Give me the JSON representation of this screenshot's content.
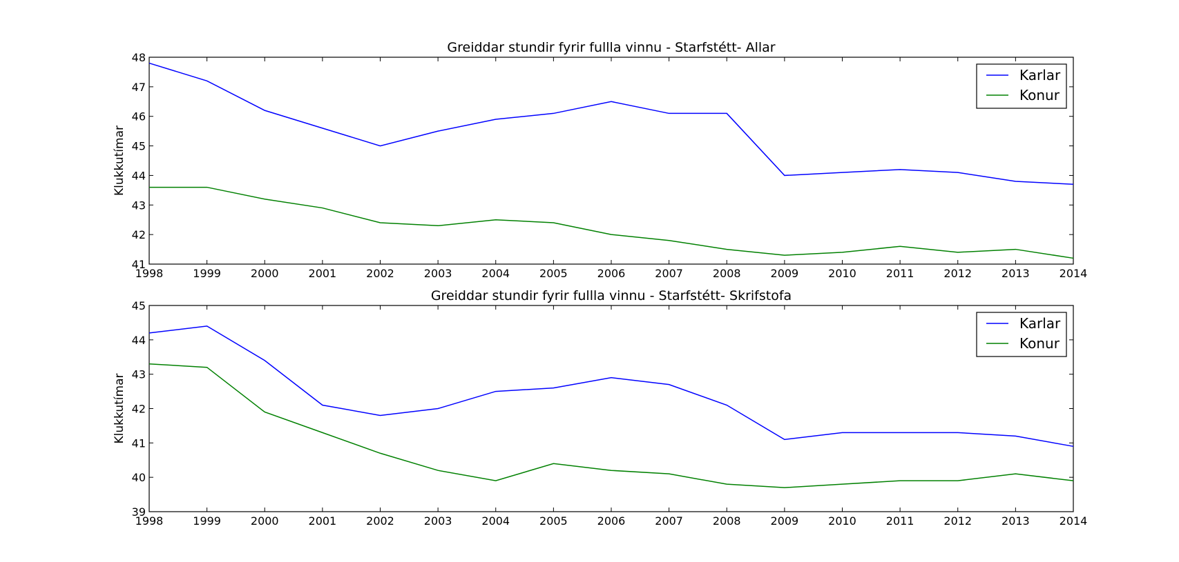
{
  "chart_data": [
    {
      "type": "line",
      "title": "Greiddar stundir fyrir fullla vinnu - Starfstétt- Allar",
      "xlabel": "",
      "ylabel": "Klukkutímar",
      "x": [
        1998,
        1999,
        2000,
        2001,
        2002,
        2003,
        2004,
        2005,
        2006,
        2007,
        2008,
        2009,
        2010,
        2011,
        2012,
        2013,
        2014
      ],
      "xlim": [
        1998,
        2014
      ],
      "ylim": [
        41,
        48
      ],
      "yticks": [
        41,
        42,
        43,
        44,
        45,
        46,
        47,
        48
      ],
      "legend_position": "top-right",
      "grid": false,
      "series": [
        {
          "name": "Karlar",
          "color": "#0000ff",
          "values": [
            47.8,
            47.2,
            46.2,
            45.6,
            45.0,
            45.5,
            45.9,
            46.1,
            46.5,
            46.1,
            46.1,
            44.0,
            44.1,
            44.2,
            44.1,
            43.8,
            43.7
          ]
        },
        {
          "name": "Konur",
          "color": "#008000",
          "values": [
            43.6,
            43.6,
            43.2,
            42.9,
            42.4,
            42.3,
            42.5,
            42.4,
            42.0,
            41.8,
            41.5,
            41.3,
            41.4,
            41.6,
            41.4,
            41.5,
            41.2
          ]
        }
      ]
    },
    {
      "type": "line",
      "title": "Greiddar stundir fyrir fullla vinnu - Starfstétt- Skrifstofa",
      "xlabel": "",
      "ylabel": "Klukkutímar",
      "x": [
        1998,
        1999,
        2000,
        2001,
        2002,
        2003,
        2004,
        2005,
        2006,
        2007,
        2008,
        2009,
        2010,
        2011,
        2012,
        2013,
        2014
      ],
      "xlim": [
        1998,
        2014
      ],
      "ylim": [
        39,
        45
      ],
      "yticks": [
        39,
        40,
        41,
        42,
        43,
        44,
        45
      ],
      "legend_position": "top-right",
      "grid": false,
      "series": [
        {
          "name": "Karlar",
          "color": "#0000ff",
          "values": [
            44.2,
            44.4,
            43.4,
            42.1,
            41.8,
            42.0,
            42.5,
            42.6,
            42.9,
            42.7,
            42.1,
            41.1,
            41.3,
            41.3,
            41.3,
            41.2,
            40.9
          ]
        },
        {
          "name": "Konur",
          "color": "#008000",
          "values": [
            43.3,
            43.2,
            41.9,
            41.3,
            40.7,
            40.2,
            39.9,
            40.4,
            40.2,
            40.1,
            39.8,
            39.7,
            39.8,
            39.9,
            39.9,
            40.1,
            39.9
          ]
        }
      ]
    }
  ]
}
